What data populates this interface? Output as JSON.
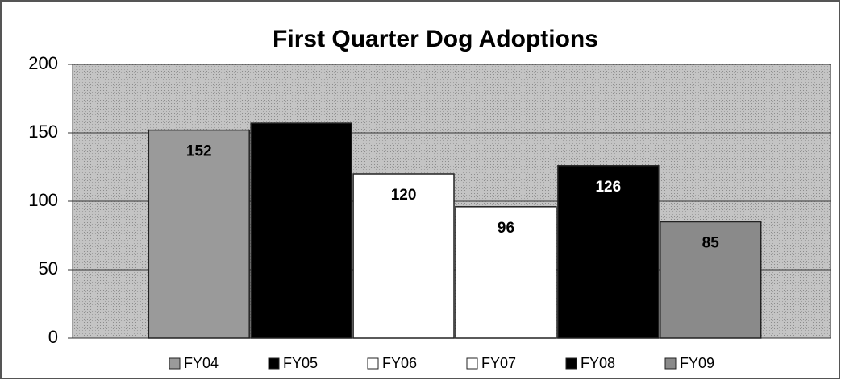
{
  "chart_data": {
    "type": "bar",
    "title": "First Quarter Dog Adoptions",
    "series": [
      {
        "name": "FY04",
        "color": "#9a9a9a",
        "values": [
          152
        ],
        "value_labels": [
          "152"
        ]
      },
      {
        "name": "FY05",
        "color": "#000000",
        "values": [
          157
        ]
      },
      {
        "name": "FY06",
        "color": "#ffffff",
        "values": [
          120
        ],
        "value_labels": [
          "120"
        ]
      },
      {
        "name": "FY07",
        "color": "#ffffff",
        "values": [
          96
        ],
        "value_labels": [
          "96"
        ]
      },
      {
        "name": "FY08",
        "color": "#000000",
        "values": [
          126
        ],
        "value_labels": [
          "126"
        ]
      },
      {
        "name": "FY09",
        "color": "#8a8a8a",
        "values": [
          85
        ],
        "value_labels": [
          "85"
        ]
      }
    ],
    "ylim": [
      0,
      200
    ],
    "yticks": [
      0,
      50,
      100,
      150,
      200
    ],
    "grid": true,
    "legend": "bottom"
  }
}
